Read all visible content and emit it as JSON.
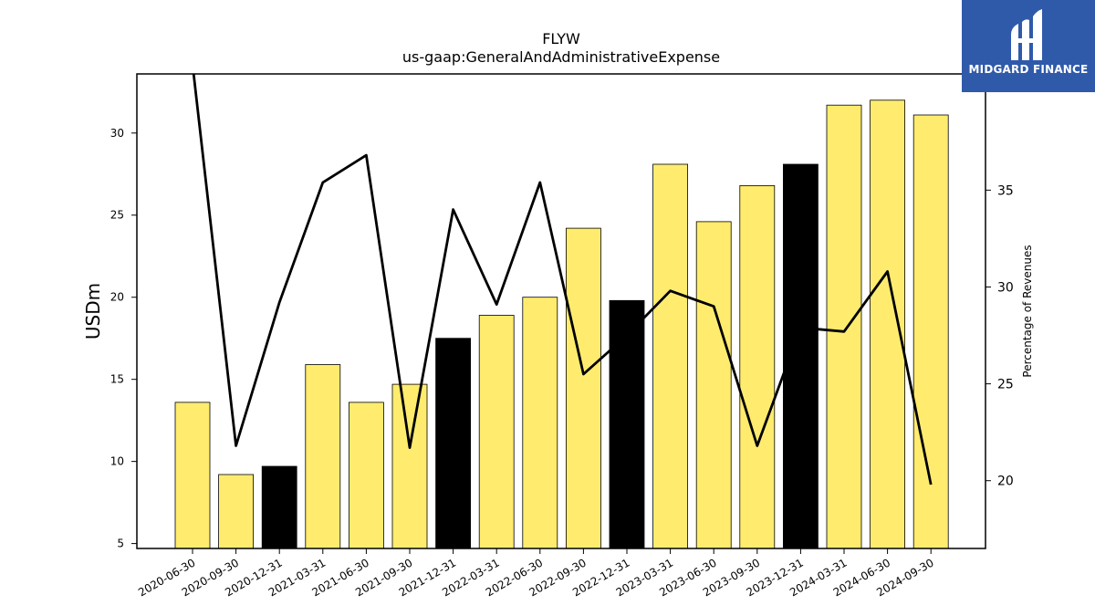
{
  "chart_data": {
    "type": "bar",
    "title": "FLYW",
    "subtitle": "us-gaap:GeneralAndAdministrativeExpense",
    "ylabel": "USDm",
    "y2label": "Percentage of Revenues",
    "ylim": [
      4.7,
      33.6
    ],
    "y2lim": [
      16.5,
      41.0
    ],
    "yticks": [
      5,
      10,
      15,
      20,
      25,
      30
    ],
    "y2ticks": [
      20,
      25,
      30,
      35
    ],
    "categories": [
      "2020-06-30",
      "2020-09-30",
      "2020-12-31",
      "2021-03-31",
      "2021-06-30",
      "2021-09-30",
      "2021-12-31",
      "2022-03-31",
      "2022-06-30",
      "2022-09-30",
      "2022-12-31",
      "2023-03-31",
      "2023-06-30",
      "2023-09-30",
      "2023-12-31",
      "2024-03-31",
      "2024-06-30",
      "2024-09-30"
    ],
    "values": [
      13.6,
      9.2,
      9.7,
      15.9,
      13.6,
      14.7,
      17.5,
      18.9,
      20.0,
      24.2,
      19.8,
      28.1,
      24.6,
      26.8,
      28.1,
      31.7,
      32.0,
      31.1
    ],
    "highlight": [
      false,
      false,
      true,
      false,
      false,
      false,
      true,
      false,
      false,
      false,
      true,
      false,
      false,
      false,
      true,
      false,
      false,
      false
    ],
    "bar_color": "#ffec6e",
    "highlight_color": "#000000",
    "line": {
      "name": "Percentage of Revenues",
      "values": [
        41.5,
        21.8,
        29.2,
        35.4,
        36.8,
        21.7,
        34.0,
        29.1,
        35.4,
        25.5,
        27.5,
        29.8,
        29.0,
        21.8,
        27.9,
        27.7,
        30.8,
        19.8
      ],
      "color": "#000000"
    },
    "grid": false,
    "legend": "none"
  },
  "logo": {
    "text": "MIDGARD FINANCE",
    "bg_color": "#2f5aaa"
  }
}
